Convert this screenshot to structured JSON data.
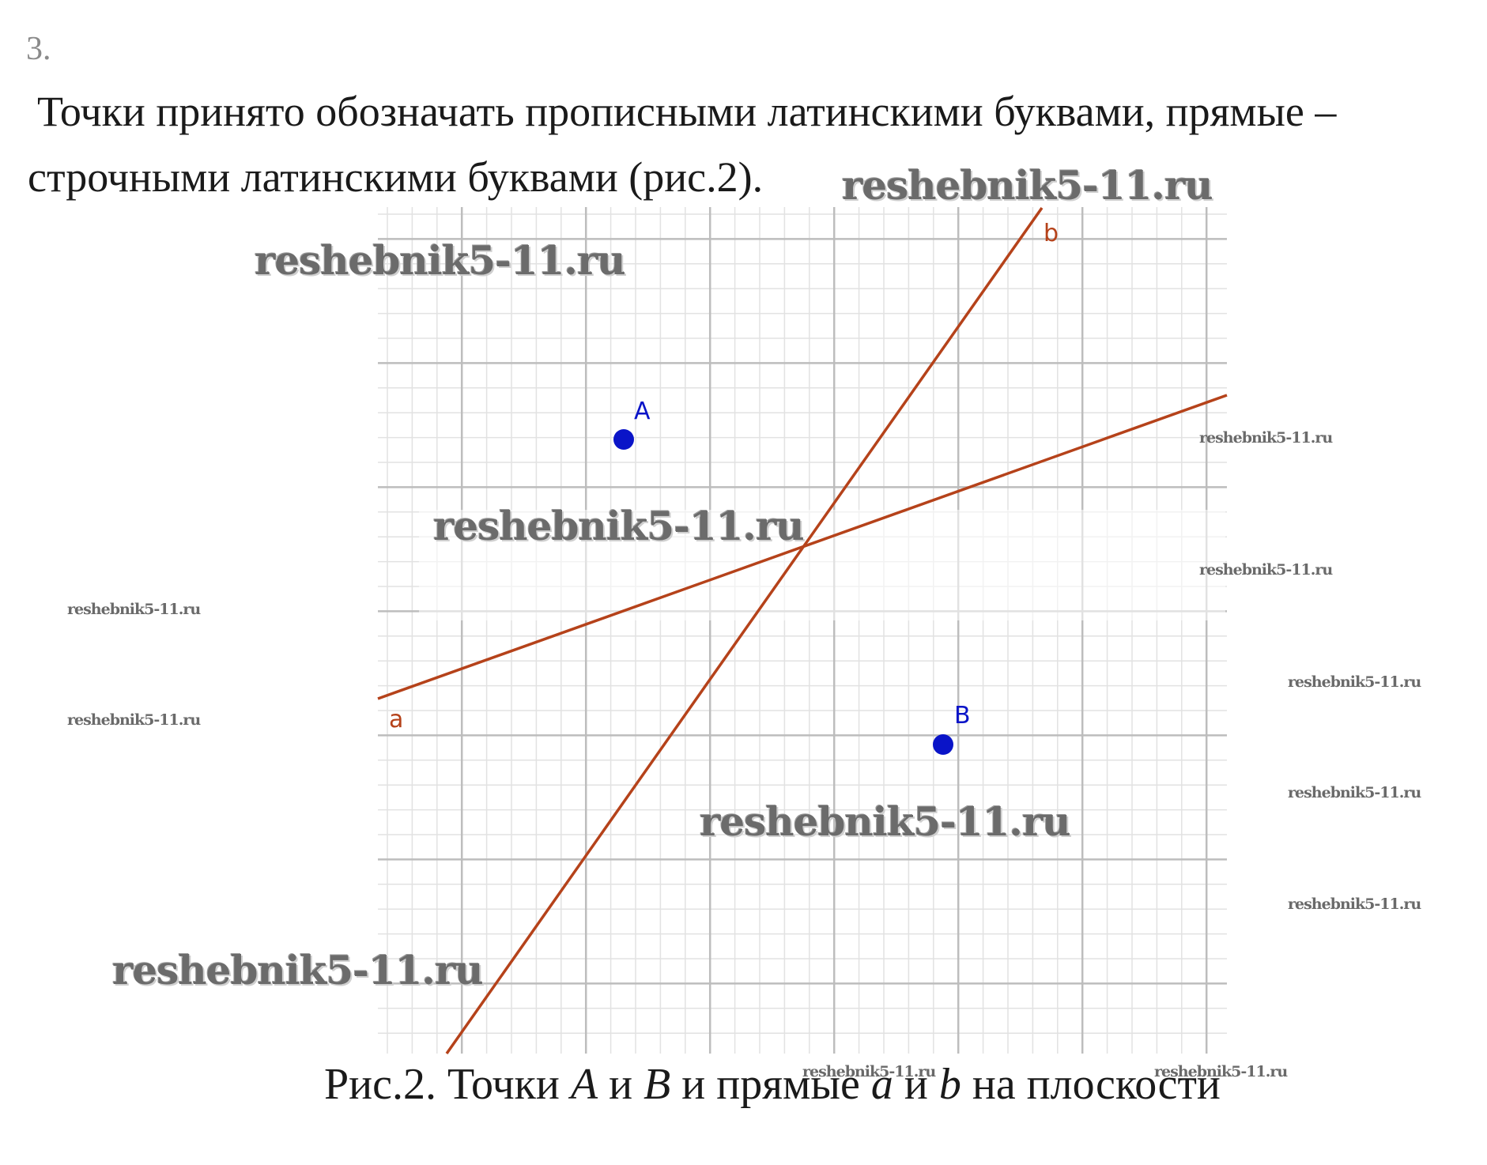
{
  "task_number": "3.",
  "paragraph": {
    "line1": "Точки принято обозначать прописными латинскими буквами, прямые –",
    "line2": "строчными латинскими буквами (рис.2)."
  },
  "figure": {
    "points": [
      {
        "label": "A",
        "color": "#0a14c8"
      },
      {
        "label": "B",
        "color": "#0a14c8"
      }
    ],
    "lines": [
      {
        "label": "a",
        "color": "#b5421a"
      },
      {
        "label": "b",
        "color": "#b5421a"
      }
    ]
  },
  "caption": {
    "prefix": "Рис.2. Точки ",
    "A": "A",
    "and1": " и ",
    "B": "B",
    "mid": " и прямые ",
    "a": "a",
    "and2": " и ",
    "b": "b",
    "suffix": " на плоскости"
  },
  "watermark": "reshebnik5-11.ru"
}
